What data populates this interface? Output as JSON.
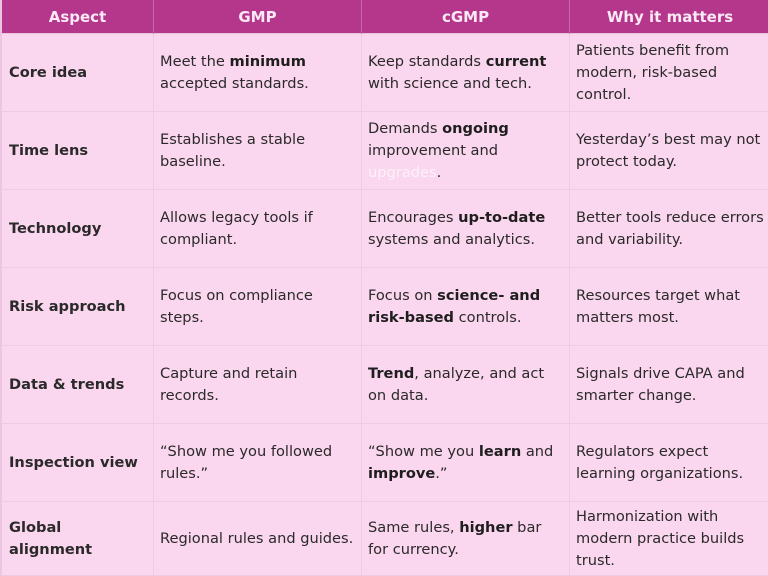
{
  "header": {
    "columns": [
      "Aspect",
      "GMP",
      "cGMP",
      "Why it matters"
    ]
  },
  "colors": {
    "header_bg": "#b5378c",
    "header_text": "#fbe9f5",
    "body_bg": "#fbd6ef",
    "grid_line": "#eccce2"
  },
  "rows": [
    {
      "aspect": "Core idea",
      "gmp": [
        {
          "t": "Meet the "
        },
        {
          "t": "minimum",
          "b": true
        },
        {
          "t": " accepted standards."
        }
      ],
      "cgmp": [
        {
          "t": "Keep standards "
        },
        {
          "t": "current",
          "b": true
        },
        {
          "t": " with science and tech."
        }
      ],
      "why": [
        {
          "t": "Patients benefit from modern, risk-based control."
        }
      ]
    },
    {
      "aspect": "Time lens",
      "gmp": [
        {
          "t": "Establishes a stable baseline."
        }
      ],
      "cgmp": [
        {
          "t": "Demands "
        },
        {
          "t": "ongoing",
          "b": true
        },
        {
          "t": " improvement and "
        },
        {
          "t": "upgrades",
          "ghost": true
        },
        {
          "t": "."
        }
      ],
      "why": [
        {
          "t": "Yesterday’s best may not protect today."
        }
      ]
    },
    {
      "aspect": "Technology",
      "gmp": [
        {
          "t": "Allows legacy tools if compliant."
        }
      ],
      "cgmp": [
        {
          "t": "Encourages "
        },
        {
          "t": "up-to-date",
          "b": true
        },
        {
          "t": " systems and analytics."
        }
      ],
      "why": [
        {
          "t": "Better tools reduce errors and variability."
        }
      ]
    },
    {
      "aspect": "Risk approach",
      "gmp": [
        {
          "t": "Focus on compliance steps."
        }
      ],
      "cgmp": [
        {
          "t": "Focus on "
        },
        {
          "t": "science- and risk-based",
          "b": true
        },
        {
          "t": " controls."
        }
      ],
      "why": [
        {
          "t": "Resources target what matters most."
        }
      ]
    },
    {
      "aspect": "Data & trends",
      "gmp": [
        {
          "t": "Capture and retain records."
        }
      ],
      "cgmp": [
        {
          "t": "Trend",
          "b": true
        },
        {
          "t": ", analyze, and act on data."
        }
      ],
      "why": [
        {
          "t": "Signals drive CAPA and smarter change."
        }
      ]
    },
    {
      "aspect": "Inspection view",
      "gmp": [
        {
          "t": "“Show me you followed rules.”"
        }
      ],
      "cgmp": [
        {
          "t": "“Show me you "
        },
        {
          "t": "learn",
          "b": true
        },
        {
          "t": " and "
        },
        {
          "t": "improve",
          "b": true
        },
        {
          "t": ".”"
        }
      ],
      "why": [
        {
          "t": "Regulators expect learning organizations."
        }
      ]
    },
    {
      "aspect": "Global alignment",
      "gmp": [
        {
          "t": "Regional rules and guides."
        }
      ],
      "cgmp": [
        {
          "t": "Same rules, "
        },
        {
          "t": "higher",
          "b": true
        },
        {
          "t": " bar for currency."
        }
      ],
      "why": [
        {
          "t": "Harmonization with modern practice builds trust."
        }
      ]
    }
  ]
}
